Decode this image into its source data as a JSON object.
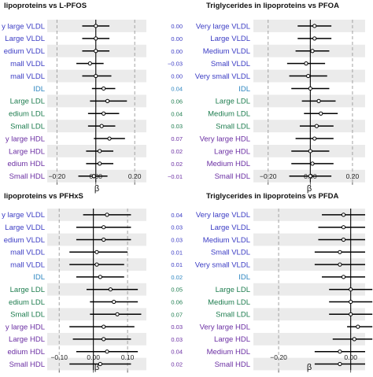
{
  "colors": {
    "vldl": "#3b3cc4",
    "idl": "#2e86c1",
    "ldl": "#1e7d4f",
    "hdl": "#6b2fa3",
    "stripe": "#ebebeb",
    "estimate_line": "#000000",
    "zero_line": "#000000",
    "dashed_ref": "#999999"
  },
  "chart_data": [
    {
      "type": "forest",
      "title": "lipoproteins vs L-PFOS",
      "xlabel": "β",
      "xlim": [
        -0.25,
        0.26
      ],
      "xticks": [
        -0.2,
        0.0,
        0.2
      ],
      "xtick_labels": [
        "−0.20",
        "0.00",
        "0.20"
      ],
      "reference_lines": [
        -0.2,
        0.0,
        0.2
      ],
      "categories": [
        "y large VLDL",
        "Large VLDL",
        "edium VLDL",
        "mall VLDL",
        "mall VLDL",
        "IDL",
        "Large LDL",
        "edium LDL",
        "Small LDL",
        "y large HDL",
        "Large HDL",
        "edium HDL",
        "Small HDL"
      ],
      "category_groups": [
        "vldl",
        "vldl",
        "vldl",
        "vldl",
        "vldl",
        "idl",
        "ldl",
        "ldl",
        "ldl",
        "hdl",
        "hdl",
        "hdl",
        "hdl"
      ],
      "estimates": [
        0.0,
        0.0,
        0.0,
        -0.03,
        0.0,
        0.04,
        0.06,
        0.04,
        0.03,
        0.07,
        0.02,
        0.02,
        -0.01
      ],
      "ci_low": [
        -0.07,
        -0.07,
        -0.07,
        -0.1,
        -0.07,
        -0.02,
        -0.03,
        -0.04,
        -0.04,
        -0.01,
        -0.05,
        -0.05,
        -0.09
      ],
      "ci_high": [
        0.07,
        0.07,
        0.07,
        0.04,
        0.08,
        0.1,
        0.16,
        0.12,
        0.1,
        0.15,
        0.09,
        0.09,
        0.06
      ],
      "value_labels": [
        "0.00",
        "0.00",
        "0.00",
        "−0.03",
        "0.00",
        "0.04",
        "0.06",
        "0.04",
        "0.03",
        "0.07",
        "0.02",
        "0.02",
        "−0.01"
      ]
    },
    {
      "type": "forest",
      "title": "Triglycerides in lipoproteins vs PFOA",
      "xlabel": "β",
      "xlim": [
        -0.27,
        0.26
      ],
      "xticks": [
        -0.2,
        0.0,
        0.2
      ],
      "xtick_labels": [
        "−0.20",
        "0.00",
        "0.20"
      ],
      "reference_lines": [
        -0.2,
        0.0,
        0.2
      ],
      "categories": [
        "Very large VLDL",
        "Large VLDL",
        "Medium VLDL",
        "Small VLDL",
        "Very small VLDL",
        "IDL",
        "Large LDL",
        "Medium LDL",
        "Small LDL",
        "Very large HDL",
        "Large HDL",
        "Medium HDL",
        "Small HDL"
      ],
      "category_groups": [
        "vldl",
        "vldl",
        "vldl",
        "vldl",
        "vldl",
        "idl",
        "ldl",
        "ldl",
        "ldl",
        "hdl",
        "hdl",
        "hdl",
        "hdl"
      ],
      "estimates": [
        0.02,
        0.02,
        0.01,
        -0.02,
        -0.01,
        0.0,
        0.04,
        0.05,
        0.03,
        0.02,
        0.0,
        0.01,
        0.0
      ],
      "ci_low": [
        -0.06,
        -0.06,
        -0.07,
        -0.11,
        -0.1,
        -0.09,
        -0.04,
        -0.03,
        -0.05,
        -0.07,
        -0.09,
        -0.09,
        -0.1
      ],
      "ci_high": [
        0.1,
        0.1,
        0.09,
        0.07,
        0.08,
        0.09,
        0.12,
        0.13,
        0.11,
        0.11,
        0.09,
        0.11,
        0.1
      ],
      "value_labels": []
    },
    {
      "type": "forest",
      "title": "lipoproteins vs PFHxS",
      "xlabel": "β",
      "xlim": [
        -0.135,
        0.155
      ],
      "xticks": [
        -0.1,
        0.0,
        0.1
      ],
      "xtick_labels": [
        "−0.10",
        "0.00",
        "0.10"
      ],
      "reference_lines": [
        -0.1,
        0.0,
        0.1
      ],
      "categories": [
        "y large VLDL",
        "Large VLDL",
        "edium VLDL",
        "mall VLDL",
        "mall VLDL",
        "IDL",
        "Large LDL",
        "edium LDL",
        "Small LDL",
        "y large HDL",
        "Large HDL",
        "edium HDL",
        "Small HDL"
      ],
      "category_groups": [
        "vldl",
        "vldl",
        "vldl",
        "vldl",
        "vldl",
        "idl",
        "ldl",
        "ldl",
        "ldl",
        "hdl",
        "hdl",
        "hdl",
        "hdl"
      ],
      "estimates": [
        0.04,
        0.03,
        0.03,
        0.01,
        0.01,
        0.02,
        0.05,
        0.06,
        0.07,
        0.03,
        0.03,
        0.04,
        0.02
      ],
      "ci_low": [
        -0.03,
        -0.05,
        -0.05,
        -0.07,
        -0.07,
        -0.05,
        -0.02,
        -0.01,
        -0.01,
        -0.07,
        -0.06,
        -0.05,
        -0.07
      ],
      "ci_high": [
        0.11,
        0.11,
        0.11,
        0.1,
        0.09,
        0.09,
        0.13,
        0.13,
        0.14,
        0.12,
        0.11,
        0.13,
        0.11
      ],
      "value_labels": [
        "0.04",
        "0.03",
        "0.03",
        "0.01",
        "0.01",
        "0.02",
        "0.05",
        "0.06",
        "0.07",
        "0.03",
        "0.03",
        "0.04",
        "0.02"
      ]
    },
    {
      "type": "forest",
      "title": "Triglycerides in lipoproteins vs PFDA",
      "xlabel": "β",
      "xlim": [
        -0.27,
        0.04
      ],
      "xticks": [
        -0.2,
        0.0
      ],
      "xtick_labels": [
        "−0.20",
        "0.00"
      ],
      "reference_lines": [
        -0.2,
        0.0
      ],
      "categories": [
        "Very large VLDL",
        "Large VLDL",
        "Medium VLDL",
        "Small VLDL",
        "Very small VLDL",
        "IDL",
        "Large LDL",
        "Medium LDL",
        "Small LDL",
        "Very large HDL",
        "Large HDL",
        "Medium HDL",
        "Small HDL"
      ],
      "category_groups": [
        "vldl",
        "vldl",
        "vldl",
        "vldl",
        "vldl",
        "idl",
        "ldl",
        "ldl",
        "ldl",
        "hdl",
        "hdl",
        "hdl",
        "hdl"
      ],
      "estimates": [
        -0.02,
        -0.02,
        -0.02,
        -0.03,
        -0.03,
        -0.02,
        0.0,
        0.0,
        0.0,
        0.02,
        0.01,
        -0.03,
        -0.03
      ],
      "ci_low": [
        -0.08,
        -0.09,
        -0.09,
        -0.1,
        -0.1,
        -0.08,
        -0.06,
        -0.06,
        -0.06,
        -0.01,
        -0.05,
        -0.1,
        -0.1
      ],
      "ci_high": [
        0.04,
        0.04,
        0.04,
        0.04,
        0.04,
        0.04,
        0.06,
        0.06,
        0.06,
        0.06,
        0.06,
        0.04,
        0.04
      ],
      "value_labels": []
    }
  ]
}
